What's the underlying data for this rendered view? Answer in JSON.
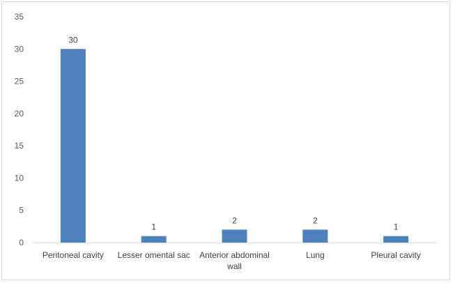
{
  "chart_data": {
    "type": "bar",
    "categories": [
      [
        "Peritoneal cavity"
      ],
      [
        "Lesser omental sac"
      ],
      [
        "Anterior abdominal",
        "wall"
      ],
      [
        "Lung"
      ],
      [
        "Pleural cavity"
      ]
    ],
    "values": [
      30,
      1,
      2,
      2,
      1
    ],
    "data_labels": [
      "30",
      "1",
      "2",
      "2",
      "1"
    ],
    "yticks": [
      "0",
      "5",
      "10",
      "15",
      "20",
      "25",
      "30",
      "35"
    ],
    "ylim": [
      0,
      35
    ],
    "title": "",
    "xlabel": "",
    "ylabel": "",
    "grid": false,
    "legend": "none",
    "bar_color": "#4f81bd"
  }
}
